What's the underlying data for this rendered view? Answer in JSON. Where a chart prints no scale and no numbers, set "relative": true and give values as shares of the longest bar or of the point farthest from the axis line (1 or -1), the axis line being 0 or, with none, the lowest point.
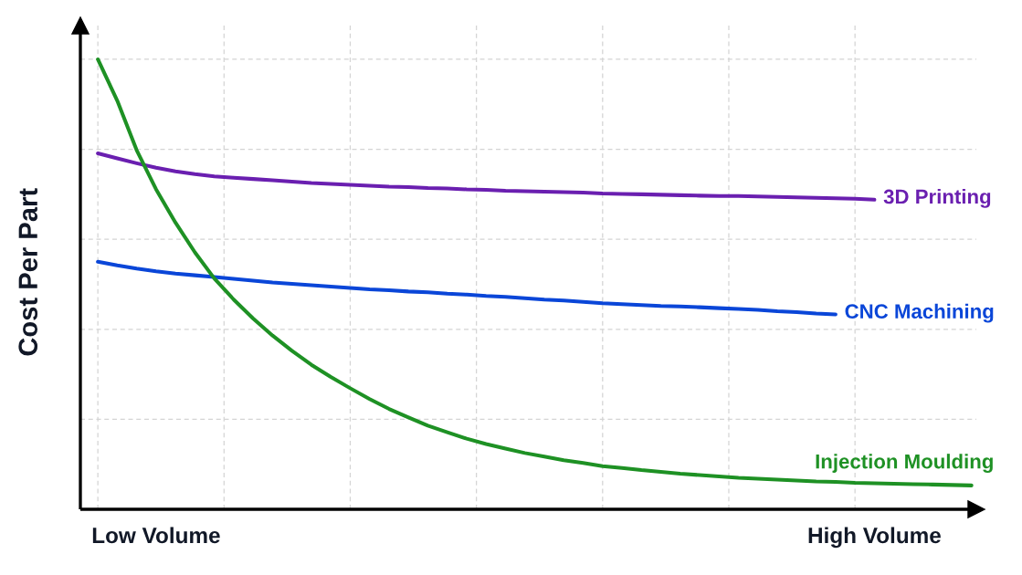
{
  "chart_data": {
    "type": "line",
    "ylabel": "Cost Per Part",
    "relative": true,
    "grid": true,
    "categories": [
      null,
      null,
      null,
      "Low Volume",
      null,
      null,
      null,
      null,
      null,
      null,
      null,
      null,
      null,
      null,
      null,
      null,
      null,
      null,
      null,
      null,
      null,
      null,
      null,
      null,
      null,
      null,
      null,
      null,
      null,
      null,
      null,
      null,
      null,
      null,
      null,
      null,
      null,
      null,
      null,
      null,
      "High Volume",
      null,
      null,
      null,
      null,
      null
    ],
    "series": [
      {
        "name": "3D Printing",
        "color": "#6a1fb0",
        "values": [
          0.791,
          0.78,
          0.769,
          0.759,
          0.751,
          0.745,
          0.74,
          0.737,
          0.734,
          0.731,
          0.728,
          0.725,
          0.723,
          0.721,
          0.719,
          0.717,
          0.716,
          0.714,
          0.713,
          0.711,
          0.71,
          0.708,
          0.707,
          0.706,
          0.705,
          0.704,
          0.702,
          0.701,
          0.7,
          0.699,
          0.698,
          0.697,
          0.696,
          0.696,
          0.695,
          0.694,
          0.693,
          0.692,
          0.691,
          0.69,
          0.688,
          null,
          null,
          null,
          null,
          null
        ]
      },
      {
        "name": "CNC Machining",
        "color": "#0a46d8",
        "values": [
          0.55,
          0.542,
          0.535,
          0.529,
          0.524,
          0.52,
          0.516,
          0.512,
          0.508,
          0.504,
          0.501,
          0.498,
          0.495,
          0.492,
          0.489,
          0.487,
          0.484,
          0.482,
          0.479,
          0.477,
          0.474,
          0.472,
          0.469,
          0.466,
          0.464,
          0.461,
          0.458,
          0.456,
          0.454,
          0.452,
          0.451,
          0.449,
          0.447,
          0.445,
          0.443,
          0.44,
          0.438,
          0.435,
          0.433,
          null,
          null,
          null,
          null,
          null,
          null,
          null
        ]
      },
      {
        "name": "Injection Moulding",
        "color": "#1e9124",
        "values": [
          1.0,
          0.908,
          0.798,
          0.711,
          0.637,
          0.571,
          0.513,
          0.466,
          0.424,
          0.386,
          0.352,
          0.321,
          0.294,
          0.269,
          0.245,
          0.223,
          0.204,
          0.186,
          0.171,
          0.157,
          0.145,
          0.135,
          0.125,
          0.117,
          0.109,
          0.103,
          0.096,
          0.092,
          0.087,
          0.083,
          0.079,
          0.076,
          0.073,
          0.07,
          0.068,
          0.066,
          0.064,
          0.062,
          0.061,
          0.059,
          0.058,
          0.057,
          0.056,
          0.055,
          0.054,
          0.053
        ]
      }
    ]
  }
}
